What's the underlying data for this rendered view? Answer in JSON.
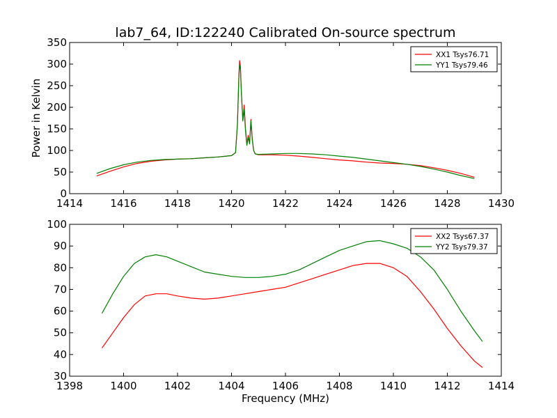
{
  "figure": {
    "title": "lab7_64, ID:122240 Calibrated On-source spectrum"
  },
  "chart_data": [
    {
      "type": "line",
      "title": "lab7_64, ID:122240 Calibrated On-source spectrum",
      "xlabel": "",
      "ylabel": "Power in Kelvin",
      "xlim": [
        1414,
        1430
      ],
      "ylim": [
        0,
        350
      ],
      "xticks": [
        "1414",
        "1416",
        "1418",
        "1420",
        "1422",
        "1424",
        "1426",
        "1428",
        "1430"
      ],
      "yticks": [
        "0",
        "50",
        "100",
        "150",
        "200",
        "250",
        "300",
        "350"
      ],
      "grid": false,
      "legend_position": "top-right",
      "series": [
        {
          "name": "XX1 Tsys76.71",
          "color": "#ff0000",
          "x": [
            1415.0,
            1415.5,
            1416.0,
            1416.5,
            1417.0,
            1417.5,
            1418.0,
            1418.5,
            1419.0,
            1419.5,
            1420.0,
            1420.15,
            1420.22,
            1420.27,
            1420.3,
            1420.33,
            1420.37,
            1420.42,
            1420.47,
            1420.52,
            1420.57,
            1420.62,
            1420.67,
            1420.72,
            1420.77,
            1420.82,
            1420.88,
            1421.0,
            1421.5,
            1422.0,
            1422.5,
            1423.0,
            1423.5,
            1424.0,
            1424.5,
            1425.0,
            1425.5,
            1426.0,
            1426.5,
            1427.0,
            1427.5,
            1428.0,
            1428.5,
            1429.0
          ],
          "values": [
            41,
            52,
            62,
            70,
            75,
            78,
            80,
            81,
            83,
            85,
            88,
            95,
            160,
            270,
            308,
            295,
            230,
            170,
            205,
            150,
            115,
            135,
            118,
            172,
            128,
            100,
            92,
            90,
            90,
            89,
            87,
            84,
            81,
            78,
            76,
            73,
            71,
            70,
            68,
            65,
            60,
            54,
            47,
            38
          ]
        },
        {
          "name": "YY1 Tsys79.46",
          "color": "#008000",
          "x": [
            1415.0,
            1415.5,
            1416.0,
            1416.5,
            1417.0,
            1417.5,
            1418.0,
            1418.5,
            1419.0,
            1419.5,
            1420.0,
            1420.15,
            1420.22,
            1420.27,
            1420.3,
            1420.33,
            1420.37,
            1420.42,
            1420.47,
            1420.52,
            1420.57,
            1420.62,
            1420.67,
            1420.72,
            1420.77,
            1420.82,
            1420.88,
            1421.0,
            1421.5,
            1422.0,
            1422.5,
            1423.0,
            1423.5,
            1424.0,
            1424.5,
            1425.0,
            1425.5,
            1426.0,
            1426.5,
            1427.0,
            1427.5,
            1428.0,
            1428.5,
            1429.0
          ],
          "values": [
            47,
            58,
            67,
            73,
            77,
            79,
            80,
            81,
            83,
            85,
            88,
            95,
            160,
            265,
            298,
            288,
            230,
            168,
            195,
            145,
            112,
            130,
            115,
            168,
            125,
            100,
            92,
            91,
            92,
            93,
            93,
            92,
            90,
            87,
            84,
            80,
            76,
            72,
            68,
            63,
            57,
            50,
            42,
            35
          ]
        }
      ]
    },
    {
      "type": "line",
      "title": "",
      "xlabel": "Frequency (MHz)",
      "ylabel": "",
      "xlim": [
        1398,
        1414
      ],
      "ylim": [
        30,
        100
      ],
      "xticks": [
        "1398",
        "1400",
        "1402",
        "1404",
        "1406",
        "1408",
        "1410",
        "1412",
        "1414"
      ],
      "yticks": [
        "30",
        "40",
        "50",
        "60",
        "70",
        "80",
        "90",
        "100"
      ],
      "grid": false,
      "legend_position": "top-right",
      "series": [
        {
          "name": "XX2 Tsys67.37",
          "color": "#ff0000",
          "x": [
            1399.2,
            1399.6,
            1400.0,
            1400.4,
            1400.8,
            1401.2,
            1401.6,
            1402.0,
            1402.5,
            1403.0,
            1403.5,
            1404.0,
            1404.5,
            1405.0,
            1405.5,
            1406.0,
            1406.5,
            1407.0,
            1407.5,
            1408.0,
            1408.5,
            1409.0,
            1409.5,
            1410.0,
            1410.5,
            1411.0,
            1411.5,
            1412.0,
            1412.5,
            1413.0,
            1413.3
          ],
          "values": [
            43,
            50,
            57,
            63,
            67,
            68,
            68,
            67,
            66,
            65.5,
            66,
            67,
            68,
            69,
            70,
            71,
            73,
            75,
            77,
            79,
            81,
            82,
            82,
            80,
            76,
            69,
            61,
            52,
            44,
            37,
            34
          ]
        },
        {
          "name": "YY2 Tsys79.37",
          "color": "#008000",
          "x": [
            1399.2,
            1399.6,
            1400.0,
            1400.4,
            1400.8,
            1401.2,
            1401.6,
            1402.0,
            1402.5,
            1403.0,
            1403.5,
            1404.0,
            1404.5,
            1405.0,
            1405.5,
            1406.0,
            1406.5,
            1407.0,
            1407.5,
            1408.0,
            1408.5,
            1409.0,
            1409.5,
            1410.0,
            1410.5,
            1411.0,
            1411.5,
            1412.0,
            1412.5,
            1413.0,
            1413.3
          ],
          "values": [
            59,
            68,
            76,
            82,
            85,
            86,
            85,
            83,
            80.5,
            78,
            77,
            76,
            75.5,
            75.5,
            76,
            77,
            79,
            82,
            85,
            88,
            90,
            92,
            92.5,
            91,
            89,
            85,
            79,
            70,
            60,
            51,
            46
          ]
        }
      ]
    }
  ]
}
